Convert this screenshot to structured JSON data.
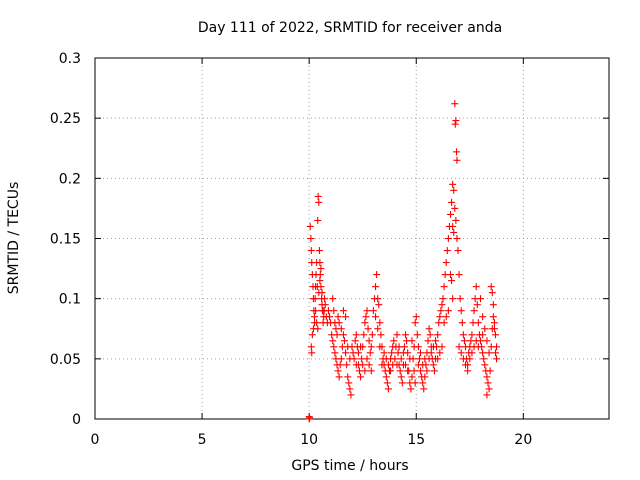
{
  "chart_data": {
    "type": "scatter",
    "title": "Day 111 of 2022, SRMTID for receiver anda",
    "xlabel": "GPS time / hours",
    "ylabel": "SRMTID / TECUs",
    "xlim": [
      0,
      24
    ],
    "ylim": [
      0,
      0.3
    ],
    "xticks": [
      0,
      5,
      10,
      15,
      20
    ],
    "xtick_labels": [
      "0",
      "5",
      "10",
      "15",
      "20"
    ],
    "yticks": [
      0,
      0.05,
      0.1,
      0.15,
      0.2,
      0.25,
      0.3
    ],
    "ytick_labels": [
      "0",
      "0.05",
      "0.1",
      "0.15",
      "0.2",
      "0.25",
      "0.3"
    ],
    "grid": true,
    "marker": "+",
    "series": [
      {
        "name": "SRMTID",
        "color": "#ff0000",
        "points": [
          [
            10.0,
            0.0
          ],
          [
            10.0,
            0.002
          ],
          [
            10.02,
            0.001
          ],
          [
            10.05,
            0.16
          ],
          [
            10.08,
            0.15
          ],
          [
            10.1,
            0.14
          ],
          [
            10.12,
            0.13
          ],
          [
            10.15,
            0.12
          ],
          [
            10.18,
            0.11
          ],
          [
            10.2,
            0.1
          ],
          [
            10.22,
            0.09
          ],
          [
            10.25,
            0.085
          ],
          [
            10.1,
            0.06
          ],
          [
            10.12,
            0.055
          ],
          [
            10.15,
            0.07
          ],
          [
            10.2,
            0.075
          ],
          [
            10.25,
            0.08
          ],
          [
            10.28,
            0.1
          ],
          [
            10.3,
            0.11
          ],
          [
            10.32,
            0.12
          ],
          [
            10.35,
            0.13
          ],
          [
            10.38,
            0.11
          ],
          [
            10.4,
            0.165
          ],
          [
            10.42,
            0.185
          ],
          [
            10.45,
            0.18
          ],
          [
            10.48,
            0.14
          ],
          [
            10.5,
            0.13
          ],
          [
            10.52,
            0.12
          ],
          [
            10.55,
            0.11
          ],
          [
            10.58,
            0.1
          ],
          [
            10.6,
            0.095
          ],
          [
            10.62,
            0.09
          ],
          [
            10.65,
            0.08
          ],
          [
            10.68,
            0.085
          ],
          [
            10.7,
            0.09
          ],
          [
            10.72,
            0.1
          ],
          [
            10.75,
            0.095
          ],
          [
            10.8,
            0.085
          ],
          [
            10.85,
            0.08
          ],
          [
            10.9,
            0.09
          ],
          [
            10.95,
            0.085
          ],
          [
            10.3,
            0.09
          ],
          [
            10.35,
            0.08
          ],
          [
            10.4,
            0.075
          ],
          [
            10.45,
            0.105
          ],
          [
            10.5,
            0.115
          ],
          [
            10.55,
            0.125
          ],
          [
            10.6,
            0.105
          ],
          [
            10.65,
            0.09
          ],
          [
            11.0,
            0.08
          ],
          [
            11.05,
            0.07
          ],
          [
            11.1,
            0.065
          ],
          [
            11.15,
            0.06
          ],
          [
            11.2,
            0.055
          ],
          [
            11.25,
            0.05
          ],
          [
            11.3,
            0.045
          ],
          [
            11.35,
            0.04
          ],
          [
            11.4,
            0.035
          ],
          [
            11.45,
            0.045
          ],
          [
            11.5,
            0.05
          ],
          [
            11.55,
            0.06
          ],
          [
            11.6,
            0.07
          ],
          [
            11.65,
            0.065
          ],
          [
            11.7,
            0.055
          ],
          [
            11.75,
            0.045
          ],
          [
            11.8,
            0.035
          ],
          [
            11.85,
            0.03
          ],
          [
            11.9,
            0.025
          ],
          [
            11.95,
            0.02
          ],
          [
            11.1,
            0.1
          ],
          [
            11.15,
            0.09
          ],
          [
            11.2,
            0.08
          ],
          [
            11.25,
            0.075
          ],
          [
            11.3,
            0.07
          ],
          [
            11.35,
            0.085
          ],
          [
            11.4,
            0.08
          ],
          [
            11.5,
            0.075
          ],
          [
            11.6,
            0.09
          ],
          [
            11.7,
            0.085
          ],
          [
            11.8,
            0.06
          ],
          [
            11.9,
            0.05
          ],
          [
            12.0,
            0.06
          ],
          [
            12.05,
            0.055
          ],
          [
            12.1,
            0.05
          ],
          [
            12.15,
            0.065
          ],
          [
            12.2,
            0.07
          ],
          [
            12.25,
            0.06
          ],
          [
            12.3,
            0.045
          ],
          [
            12.35,
            0.04
          ],
          [
            12.4,
            0.035
          ],
          [
            12.45,
            0.05
          ],
          [
            12.5,
            0.06
          ],
          [
            12.55,
            0.07
          ],
          [
            12.6,
            0.08
          ],
          [
            12.65,
            0.085
          ],
          [
            12.7,
            0.09
          ],
          [
            12.75,
            0.075
          ],
          [
            12.8,
            0.065
          ],
          [
            12.85,
            0.055
          ],
          [
            12.9,
            0.06
          ],
          [
            12.95,
            0.07
          ],
          [
            12.2,
            0.045
          ],
          [
            12.3,
            0.055
          ],
          [
            12.4,
            0.06
          ],
          [
            12.5,
            0.045
          ],
          [
            12.6,
            0.04
          ],
          [
            12.7,
            0.05
          ],
          [
            12.8,
            0.045
          ],
          [
            12.9,
            0.04
          ],
          [
            13.0,
            0.09
          ],
          [
            13.05,
            0.1
          ],
          [
            13.1,
            0.11
          ],
          [
            13.15,
            0.12
          ],
          [
            13.2,
            0.1
          ],
          [
            13.25,
            0.095
          ],
          [
            13.3,
            0.08
          ],
          [
            13.35,
            0.07
          ],
          [
            13.4,
            0.06
          ],
          [
            13.45,
            0.05
          ],
          [
            13.5,
            0.045
          ],
          [
            13.55,
            0.04
          ],
          [
            13.6,
            0.035
          ],
          [
            13.65,
            0.03
          ],
          [
            13.7,
            0.025
          ],
          [
            13.75,
            0.04
          ],
          [
            13.8,
            0.05
          ],
          [
            13.85,
            0.055
          ],
          [
            13.9,
            0.06
          ],
          [
            13.95,
            0.065
          ],
          [
            13.1,
            0.085
          ],
          [
            13.2,
            0.075
          ],
          [
            13.3,
            0.06
          ],
          [
            13.4,
            0.045
          ],
          [
            13.5,
            0.055
          ],
          [
            13.6,
            0.05
          ],
          [
            13.7,
            0.045
          ],
          [
            13.8,
            0.04
          ],
          [
            13.9,
            0.045
          ],
          [
            14.0,
            0.05
          ],
          [
            14.05,
            0.06
          ],
          [
            14.1,
            0.07
          ],
          [
            14.15,
            0.055
          ],
          [
            14.2,
            0.045
          ],
          [
            14.25,
            0.04
          ],
          [
            14.3,
            0.035
          ],
          [
            14.35,
            0.03
          ],
          [
            14.4,
            0.045
          ],
          [
            14.45,
            0.06
          ],
          [
            14.5,
            0.07
          ],
          [
            14.55,
            0.065
          ],
          [
            14.6,
            0.055
          ],
          [
            14.65,
            0.04
          ],
          [
            14.7,
            0.03
          ],
          [
            14.75,
            0.025
          ],
          [
            14.8,
            0.035
          ],
          [
            14.85,
            0.05
          ],
          [
            14.9,
            0.06
          ],
          [
            14.95,
            0.08
          ],
          [
            14.1,
            0.045
          ],
          [
            14.2,
            0.06
          ],
          [
            14.3,
            0.05
          ],
          [
            14.4,
            0.055
          ],
          [
            14.5,
            0.045
          ],
          [
            14.6,
            0.04
          ],
          [
            14.7,
            0.05
          ],
          [
            14.8,
            0.065
          ],
          [
            14.9,
            0.04
          ],
          [
            14.95,
            0.03
          ],
          [
            15.0,
            0.085
          ],
          [
            15.05,
            0.07
          ],
          [
            15.1,
            0.06
          ],
          [
            15.15,
            0.05
          ],
          [
            15.2,
            0.04
          ],
          [
            15.25,
            0.035
          ],
          [
            15.3,
            0.03
          ],
          [
            15.35,
            0.025
          ],
          [
            15.4,
            0.035
          ],
          [
            15.45,
            0.045
          ],
          [
            15.5,
            0.055
          ],
          [
            15.55,
            0.065
          ],
          [
            15.6,
            0.075
          ],
          [
            15.65,
            0.07
          ],
          [
            15.7,
            0.06
          ],
          [
            15.75,
            0.05
          ],
          [
            15.8,
            0.045
          ],
          [
            15.85,
            0.04
          ],
          [
            15.9,
            0.05
          ],
          [
            15.95,
            0.06
          ],
          [
            15.1,
            0.045
          ],
          [
            15.2,
            0.055
          ],
          [
            15.3,
            0.045
          ],
          [
            15.4,
            0.05
          ],
          [
            15.5,
            0.04
          ],
          [
            15.6,
            0.05
          ],
          [
            15.7,
            0.055
          ],
          [
            15.8,
            0.06
          ],
          [
            15.9,
            0.065
          ],
          [
            16.0,
            0.07
          ],
          [
            16.05,
            0.08
          ],
          [
            16.1,
            0.085
          ],
          [
            16.15,
            0.09
          ],
          [
            16.2,
            0.095
          ],
          [
            16.25,
            0.1
          ],
          [
            16.3,
            0.11
          ],
          [
            16.35,
            0.12
          ],
          [
            16.4,
            0.13
          ],
          [
            16.45,
            0.14
          ],
          [
            16.5,
            0.15
          ],
          [
            16.55,
            0.16
          ],
          [
            16.6,
            0.17
          ],
          [
            16.65,
            0.18
          ],
          [
            16.7,
            0.195
          ],
          [
            16.75,
            0.19
          ],
          [
            16.8,
            0.175
          ],
          [
            16.85,
            0.165
          ],
          [
            16.9,
            0.15
          ],
          [
            16.95,
            0.14
          ],
          [
            16.8,
            0.262
          ],
          [
            16.85,
            0.248
          ],
          [
            16.82,
            0.245
          ],
          [
            16.88,
            0.222
          ],
          [
            16.9,
            0.215
          ],
          [
            16.7,
            0.16
          ],
          [
            16.75,
            0.155
          ],
          [
            16.6,
            0.12
          ],
          [
            16.65,
            0.115
          ],
          [
            16.7,
            0.1
          ],
          [
            16.5,
            0.09
          ],
          [
            16.4,
            0.085
          ],
          [
            16.3,
            0.08
          ],
          [
            16.2,
            0.06
          ],
          [
            16.1,
            0.055
          ],
          [
            16.0,
            0.05
          ],
          [
            17.0,
            0.12
          ],
          [
            17.05,
            0.1
          ],
          [
            17.1,
            0.09
          ],
          [
            17.15,
            0.08
          ],
          [
            17.2,
            0.07
          ],
          [
            17.25,
            0.065
          ],
          [
            17.3,
            0.06
          ],
          [
            17.35,
            0.05
          ],
          [
            17.4,
            0.045
          ],
          [
            17.45,
            0.055
          ],
          [
            17.5,
            0.06
          ],
          [
            17.55,
            0.065
          ],
          [
            17.6,
            0.07
          ],
          [
            17.65,
            0.08
          ],
          [
            17.7,
            0.09
          ],
          [
            17.75,
            0.1
          ],
          [
            17.8,
            0.11
          ],
          [
            17.85,
            0.095
          ],
          [
            17.9,
            0.08
          ],
          [
            17.95,
            0.07
          ],
          [
            17.0,
            0.06
          ],
          [
            17.1,
            0.055
          ],
          [
            17.2,
            0.05
          ],
          [
            17.3,
            0.045
          ],
          [
            17.4,
            0.04
          ],
          [
            17.5,
            0.05
          ],
          [
            17.6,
            0.055
          ],
          [
            17.7,
            0.06
          ],
          [
            17.8,
            0.065
          ],
          [
            17.9,
            0.06
          ],
          [
            18.0,
            0.065
          ],
          [
            18.05,
            0.06
          ],
          [
            18.1,
            0.055
          ],
          [
            18.15,
            0.05
          ],
          [
            18.2,
            0.045
          ],
          [
            18.25,
            0.04
          ],
          [
            18.3,
            0.035
          ],
          [
            18.35,
            0.03
          ],
          [
            18.4,
            0.025
          ],
          [
            18.45,
            0.04
          ],
          [
            18.5,
            0.06
          ],
          [
            18.55,
            0.075
          ],
          [
            18.6,
            0.085
          ],
          [
            18.65,
            0.08
          ],
          [
            18.7,
            0.07
          ],
          [
            18.75,
            0.06
          ],
          [
            18.1,
            0.07
          ],
          [
            18.2,
            0.075
          ],
          [
            18.3,
            0.065
          ],
          [
            18.4,
            0.055
          ],
          [
            18.5,
            0.11
          ],
          [
            18.55,
            0.105
          ],
          [
            18.6,
            0.095
          ],
          [
            18.65,
            0.075
          ],
          [
            18.7,
            0.055
          ],
          [
            18.75,
            0.05
          ],
          [
            18.3,
            0.02
          ],
          [
            18.0,
            0.1
          ],
          [
            18.1,
            0.085
          ]
        ]
      }
    ]
  }
}
